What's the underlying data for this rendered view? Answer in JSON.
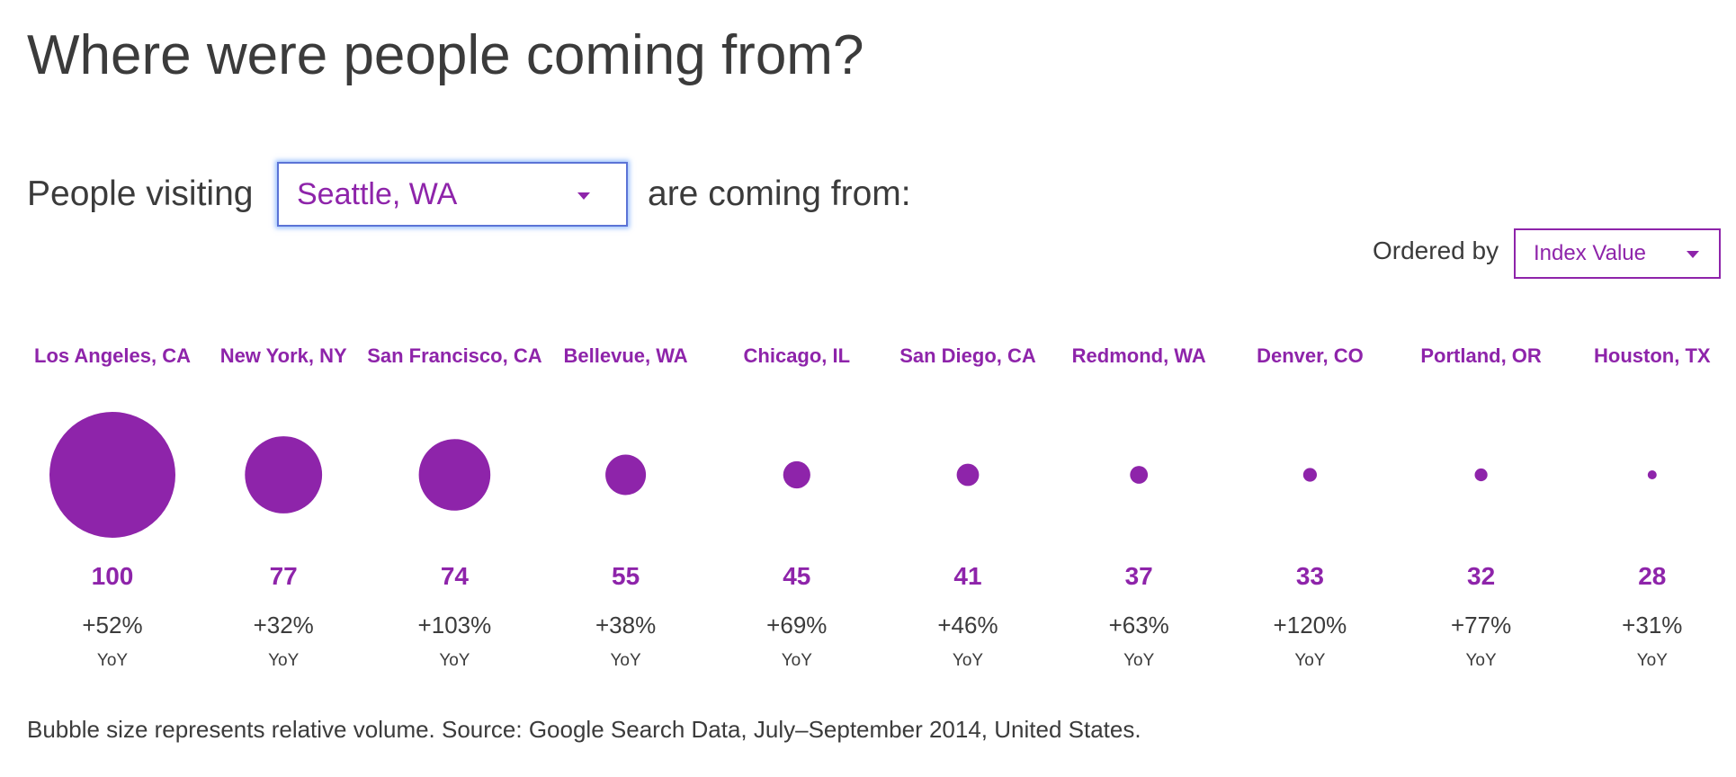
{
  "header": {
    "title": "Where were people coming from?"
  },
  "filter": {
    "prefix": "People visiting",
    "selected_city": "Seattle, WA",
    "suffix": "are coming from:"
  },
  "order": {
    "label": "Ordered by",
    "selected": "Index Value"
  },
  "footnote": "Bubble size represents relative volume. Source: Google Search Data, July–September 2014, United States.",
  "colors": {
    "accent": "#8e24aa",
    "text": "#3b3b3b",
    "focus_ring": "#4d90fe"
  },
  "icons": {
    "dropdown": "caret-down-icon"
  },
  "chart_data": {
    "type": "bubble",
    "categories": [
      "Los Angeles, CA",
      "New York, NY",
      "San Francisco, CA",
      "Bellevue, WA",
      "Chicago, IL",
      "San Diego, CA",
      "Redmond, WA",
      "Denver, CO",
      "Portland, OR",
      "Houston, TX"
    ],
    "values": [
      100,
      77,
      74,
      55,
      45,
      41,
      37,
      33,
      32,
      28
    ],
    "yoy_change": [
      "+52%",
      "+32%",
      "+103%",
      "+38%",
      "+69%",
      "+46%",
      "+63%",
      "+120%",
      "+77%",
      "+31%"
    ],
    "yoy_label": "YoY"
  }
}
